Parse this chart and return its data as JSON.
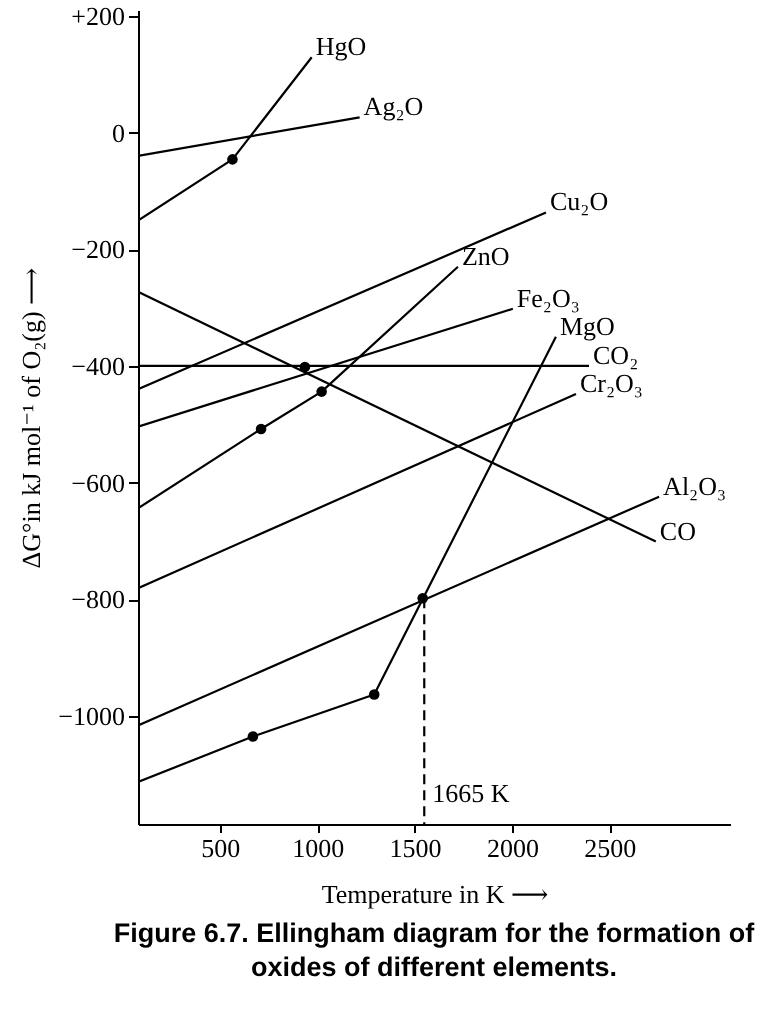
{
  "chart_data": {
    "type": "line",
    "title": "Figure 6.7. Ellingham diagram for the formation of oxides of different elements.",
    "xlabel": "Temperature in K ⟶",
    "ylabel": "ΔG°in kJ mol⁻¹ of O₂(g) ⟶",
    "xlim": [
      80,
      3120
    ],
    "ylim": [
      -1185,
      210
    ],
    "xticks": [
      500,
      1000,
      1500,
      2000,
      2500
    ],
    "yticks": [
      {
        "value": 200,
        "label": "+200"
      },
      0,
      -200,
      -400,
      -600,
      -800,
      -1000
    ],
    "grid": false,
    "series": [
      {
        "name": "HgO",
        "color": "#000000",
        "x": [
          80,
          565,
          972
        ],
        "values": [
          -151,
          -46,
          129
        ]
      },
      {
        "name": "Ag₂O",
        "color": "#000000",
        "x": [
          80,
          1218
        ],
        "values": [
          -40,
          26
        ]
      },
      {
        "name": "Cu₂O",
        "color": "#000000",
        "x": [
          80,
          2175
        ],
        "values": [
          -440,
          -137
        ]
      },
      {
        "name": "ZnO",
        "color": "#000000",
        "x": [
          80,
          712,
          1023,
          1723
        ],
        "values": [
          -644,
          -508,
          -444,
          -230
        ]
      },
      {
        "name": "Fe₂O₃",
        "color": "#000000",
        "x": [
          80,
          2005
        ],
        "values": [
          -504,
          -302
        ]
      },
      {
        "name": "MgO",
        "color": "#000000",
        "x": [
          80,
          670,
          1293,
          2226
        ],
        "values": [
          -1113,
          -1035,
          -963,
          -350
        ]
      },
      {
        "name": "CO₂",
        "color": "#000000",
        "x": [
          80,
          2396
        ],
        "values": [
          -400,
          -400
        ]
      },
      {
        "name": "Cr₂O₃",
        "color": "#000000",
        "x": [
          80,
          2329
        ],
        "values": [
          -781,
          -448
        ]
      },
      {
        "name": "Al₂O₃",
        "color": "#000000",
        "x": [
          80,
          2756
        ],
        "values": [
          -1016,
          -624
        ]
      },
      {
        "name": "CO",
        "color": "#000000",
        "x": [
          80,
          2739
        ],
        "values": [
          -273,
          -701
        ]
      },
      {
        "type": "scatter",
        "marker": "circle",
        "color": "#000000",
        "x": [
          565,
          712,
          1023,
          937,
          670,
          1293,
          1542
        ],
        "values": [
          -46,
          -508,
          -444,
          -402,
          -1035,
          -963,
          -798
        ]
      },
      {
        "name": "1665 K",
        "type": "line",
        "line_style": "dashed",
        "color": "#000000",
        "x": [
          1550,
          1550
        ],
        "values": [
          -798,
          -1185
        ]
      }
    ]
  }
}
